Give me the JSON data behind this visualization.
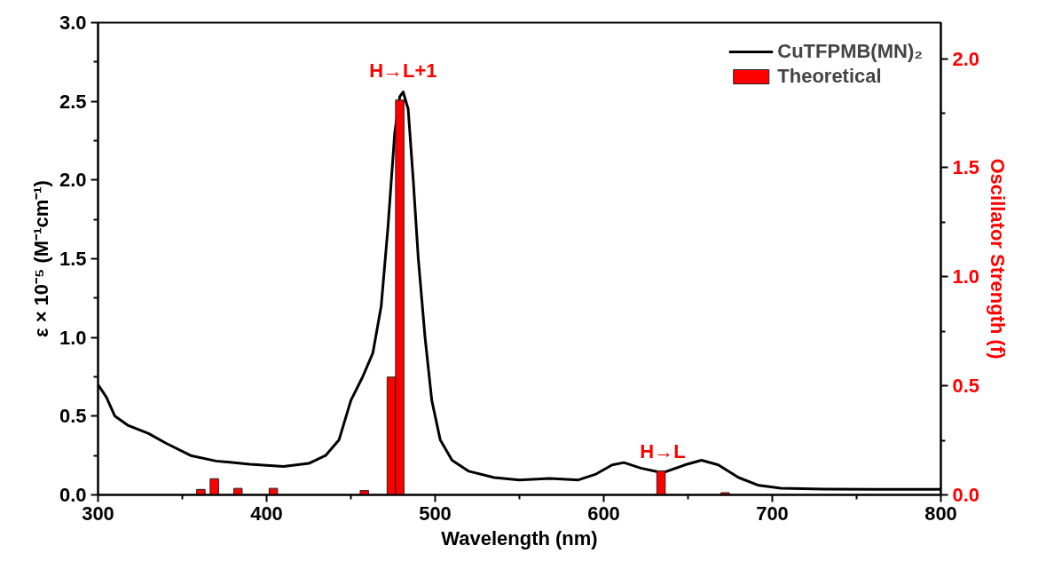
{
  "chart_data": {
    "type": "line",
    "xlabel": "Wavelength (nm)",
    "ylabel": "ε × 10⁻⁵ (M⁻¹cm⁻¹)",
    "y2label": "Oscillator Strength (f)",
    "xlim": [
      300,
      800
    ],
    "ylim": [
      0,
      3.0
    ],
    "y2lim": [
      0,
      2.165
    ],
    "xticks": [
      300,
      {
        "value": 350,
        "label": null
      },
      400,
      {
        "value": 450,
        "label": null
      },
      500,
      {
        "value": 550,
        "label": null
      },
      600,
      {
        "value": 650,
        "label": null
      },
      700,
      {
        "value": 750,
        "label": null
      },
      800
    ],
    "yticks": [
      {
        "value": 0,
        "label": "0.0"
      },
      {
        "value": 0.25,
        "label": null
      },
      0.5,
      {
        "value": 0.75,
        "label": null
      },
      {
        "value": 1,
        "label": "1.0"
      },
      {
        "value": 1.25,
        "label": null
      },
      1.5,
      {
        "value": 1.75,
        "label": null
      },
      {
        "value": 2,
        "label": "2.0"
      },
      {
        "value": 2.25,
        "label": null
      },
      2.5,
      {
        "value": 2.75,
        "label": null
      },
      {
        "value": 3,
        "label": "3.0"
      }
    ],
    "y2ticks": [
      {
        "value": 0,
        "label": "0.0"
      },
      {
        "value": 0.25,
        "label": null
      },
      0.5,
      {
        "value": 0.75,
        "label": null
      },
      {
        "value": 1,
        "label": "1.0"
      },
      {
        "value": 1.25,
        "label": null
      },
      1.5,
      {
        "value": 1.75,
        "label": null
      },
      {
        "value": 2,
        "label": "2.0"
      }
    ],
    "legend": "top right",
    "grid": false,
    "series": [
      {
        "name": "CuTFPMB(MN)₂",
        "color": "#000000",
        "axis": "y",
        "x": [
          300,
          305,
          310,
          318,
          330,
          340,
          355,
          370,
          390,
          410,
          425,
          435,
          443,
          450,
          457,
          463,
          468,
          472,
          476,
          479,
          481,
          484,
          487,
          490,
          494,
          498,
          503,
          510,
          520,
          535,
          550,
          568,
          585,
          595,
          605,
          612,
          622,
          635,
          648,
          658,
          668,
          680,
          692,
          705,
          730,
          760,
          800
        ],
        "values": [
          0.7,
          0.62,
          0.5,
          0.44,
          0.39,
          0.33,
          0.25,
          0.215,
          0.195,
          0.18,
          0.2,
          0.25,
          0.35,
          0.6,
          0.75,
          0.9,
          1.2,
          1.7,
          2.3,
          2.53,
          2.56,
          2.45,
          2.0,
          1.5,
          1.0,
          0.6,
          0.35,
          0.22,
          0.15,
          0.11,
          0.095,
          0.105,
          0.095,
          0.13,
          0.19,
          0.205,
          0.17,
          0.14,
          0.19,
          0.22,
          0.19,
          0.11,
          0.06,
          0.042,
          0.037,
          0.035,
          0.035
        ]
      },
      {
        "name": "Theoretical",
        "type": "bar",
        "color": "#ff0000",
        "axis": "y2",
        "x": [
          361,
          369,
          375,
          383,
          404,
          458,
          474,
          479,
          541,
          634,
          672
        ],
        "values": [
          0.025,
          0.074,
          null,
          0.03,
          0.03,
          0.02,
          0.54,
          1.81,
          null,
          0.11,
          0.01
        ]
      }
    ],
    "annotations": [
      {
        "text": "H→L+1",
        "x": 481,
        "y": 2.56
      },
      {
        "text": "H→L",
        "x": 635,
        "y": 0.14
      }
    ]
  }
}
